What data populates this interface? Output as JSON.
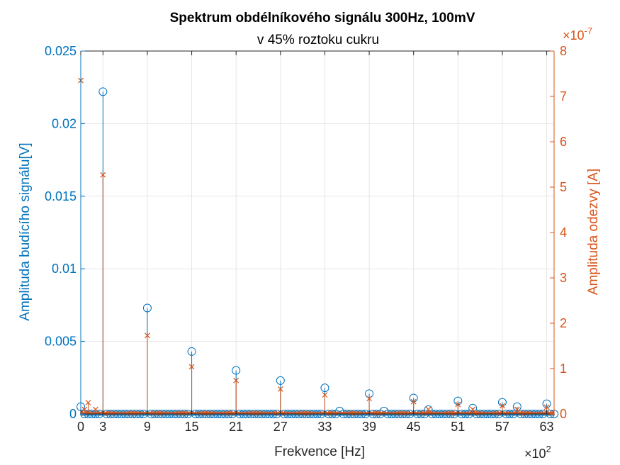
{
  "chart_data": {
    "type": "stem",
    "title": "Spektrum obdélníkového signálu 300Hz, 100mV",
    "subtitle": "v 45% roztoku cukru",
    "xlabel": "Frekvence [Hz]",
    "x_exponent_label": "×10",
    "x_exponent_value": "2",
    "xlim": [
      0,
      64
    ],
    "xticks": [
      "0",
      "3",
      "9",
      "15",
      "21",
      "27",
      "33",
      "39",
      "45",
      "51",
      "57",
      "63"
    ],
    "grid": true,
    "y_left": {
      "label": "Amplituda budícího signálu[V]",
      "lim": [
        0,
        0.025
      ],
      "ticks": [
        "0",
        "0.005",
        "0.01",
        "0.015",
        "0.02",
        "0.025"
      ],
      "color": "#0072BD",
      "marker": "circle"
    },
    "y_right": {
      "label": "Amplituda odezvy [A]",
      "exponent_prefix": "×10",
      "exponent_value": "-7",
      "lim": [
        0,
        8
      ],
      "ticks": [
        "0",
        "1",
        "2",
        "3",
        "4",
        "5",
        "6",
        "7",
        "8"
      ],
      "color": "#D95319",
      "marker": "x"
    },
    "series": [
      {
        "axis": "left",
        "color": "#0072BD",
        "peaks_x": [
          0,
          3,
          9,
          15,
          21,
          27,
          33,
          35,
          39,
          41,
          45,
          47,
          51,
          53,
          57,
          59,
          63
        ],
        "peaks_y": [
          0.0005,
          0.0222,
          0.0073,
          0.0043,
          0.003,
          0.0023,
          0.0018,
          0.0002,
          0.0014,
          0.0002,
          0.0011,
          0.0003,
          0.0009,
          0.0004,
          0.0008,
          0.0005,
          0.0007
        ],
        "baseline_step": 0.5,
        "baseline_value": 0.0
      },
      {
        "axis": "right",
        "color": "#D95319",
        "peaks_x": [
          0,
          0.5,
          1,
          2,
          3,
          9,
          15,
          21,
          27,
          33,
          39,
          45,
          47,
          51,
          53,
          57,
          59,
          63
        ],
        "peaks_y": [
          7.35,
          0.1,
          0.25,
          0.1,
          5.27,
          1.73,
          1.04,
          0.74,
          0.55,
          0.42,
          0.34,
          0.27,
          0.1,
          0.21,
          0.1,
          0.18,
          0.1,
          0.15
        ],
        "baseline_step": 0.25,
        "baseline_value": 0.02
      }
    ]
  }
}
